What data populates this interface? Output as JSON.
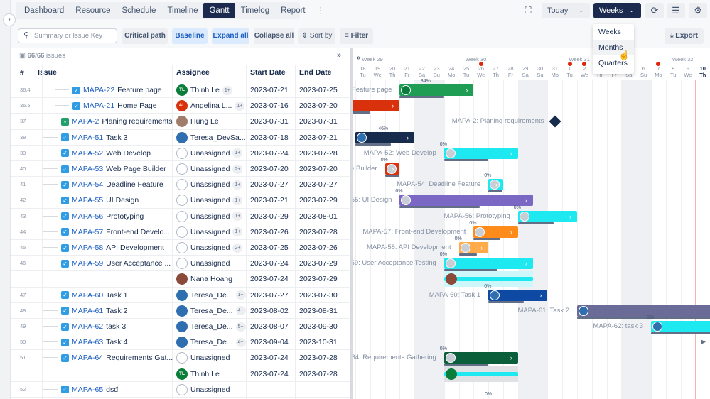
{
  "nav": {
    "tabs": [
      "Dashboard",
      "Resource",
      "Schedule",
      "Timeline",
      "Gantt",
      "Timelog",
      "Report"
    ],
    "active": "Gantt"
  },
  "toolbar": {
    "search_placeholder": "Summary or Issue Key",
    "critical_path": "Critical path",
    "baseline": "Baseline",
    "expand_all": "Expand all",
    "collapse_all": "Collapse all",
    "sort_by": "Sort by",
    "filter": "Filter",
    "export": "Export",
    "today": "Today",
    "scale": "Weeks"
  },
  "scale_menu": {
    "options": [
      "Weeks",
      "Months",
      "Quarters"
    ],
    "hovered": "Months"
  },
  "issues_count": "66/66",
  "issues_label": "issues",
  "columns": [
    "#",
    "Issue",
    "Assignee",
    "Start Date",
    "End Date"
  ],
  "timeline": {
    "weeks": [
      "Week 29",
      "Week 30",
      "Week 31",
      "Week 32"
    ],
    "days": [
      [
        "18",
        "Tu"
      ],
      [
        "19",
        "We"
      ],
      [
        "20",
        "Th"
      ],
      [
        "21",
        "Fr"
      ],
      [
        "22",
        "Sa"
      ],
      [
        "23",
        "Su"
      ],
      [
        "24",
        "Mo"
      ],
      [
        "25",
        "Tu"
      ],
      [
        "26",
        "We"
      ],
      [
        "27",
        "Th"
      ],
      [
        "28",
        "Fr"
      ],
      [
        "29",
        "Sa"
      ],
      [
        "30",
        "Su"
      ],
      [
        "31",
        "Mo"
      ],
      [
        "1",
        "Tu"
      ],
      [
        "2",
        "We"
      ],
      [
        "3",
        "Th"
      ],
      [
        "4",
        "Fr"
      ],
      [
        "5",
        "Sa"
      ],
      [
        "6",
        "Su"
      ],
      [
        "7",
        "Mo"
      ],
      [
        "8",
        "Tu"
      ],
      [
        "9",
        "We"
      ],
      [
        "10",
        "Th"
      ]
    ],
    "marked_days": [
      "26",
      "1",
      "2",
      "7"
    ],
    "today": "10"
  },
  "rows": [
    {
      "num": "36.4",
      "key": "MAPA-22",
      "summary": "Feature page",
      "bar_label": "Feature page",
      "level": 2,
      "type": "subtask",
      "assignee": "Thinh Le",
      "initials": "TL",
      "avatar_color": "#0a7d3b",
      "extra": "1+",
      "start": "2023-07-21",
      "end": "2023-07-25",
      "color": "#1f9d55",
      "progress": "34%"
    },
    {
      "num": "36.5",
      "key": "MAPA-21",
      "summary": "Home Page",
      "bar_label": "MAPA-21: Home Page",
      "level": 2,
      "type": "subtask",
      "assignee": "Angelina L...",
      "initials": "AL",
      "avatar_color": "#d9310b",
      "extra": "1+",
      "start": "2023-07-16",
      "end": "2023-07-20",
      "color": "#d9310b",
      "progress": "0%"
    },
    {
      "num": "37",
      "key": "MAPA-2",
      "summary": "Planing requirements",
      "bar_label": "MAPA-2: Planing requirements",
      "level": 1,
      "type": "story",
      "assignee": "Hung Le",
      "avatar_color": "#a07d6a",
      "start": "2023-07-31",
      "end": "2023-07-31",
      "milestone": true,
      "color": "#172b4d"
    },
    {
      "num": "38",
      "key": "MAPA-51",
      "summary": "Task 3",
      "bar_label": "MAPA-51: Task 3",
      "level": 1,
      "type": "task",
      "assignee": "Teresa_DevSa...",
      "avatar_color": "#2f6fb0",
      "start": "2023-07-18",
      "end": "2023-07-21",
      "color": "#172b4d",
      "progress": "46%"
    },
    {
      "num": "39",
      "key": "MAPA-52",
      "summary": "Web Develop",
      "bar_label": "MAPA-52: Web Develop",
      "level": 1,
      "type": "task",
      "assignee": "Unassigned",
      "extra": "1+",
      "start": "2023-07-24",
      "end": "2023-07-28",
      "color": "#1ee8f0",
      "progress": "0%"
    },
    {
      "num": "40",
      "key": "MAPA-53",
      "summary": "Web Page Builder",
      "bar_label": "MAPA-53: Web Page Builder",
      "level": 1,
      "type": "task",
      "assignee": "Unassigned",
      "extra": "2+",
      "start": "2023-07-20",
      "end": "2023-07-20",
      "color": "#d9310b",
      "progress": "0%"
    },
    {
      "num": "41",
      "key": "MAPA-54",
      "summary": "Deadline Feature",
      "bar_label": "MAPA-54: Deadline Feature",
      "level": 1,
      "type": "task",
      "assignee": "Unassigned",
      "extra": "1+",
      "start": "2023-07-27",
      "end": "2023-07-27",
      "color": "#1ee8f0",
      "progress": "0%"
    },
    {
      "num": "42",
      "key": "MAPA-55",
      "summary": "UI Design",
      "bar_label": "MAPA-55: UI Design",
      "level": 1,
      "type": "task",
      "assignee": "Unassigned",
      "extra": "1+",
      "start": "2023-07-21",
      "end": "2023-07-29",
      "color": "#7b68c4",
      "progress": "0%"
    },
    {
      "num": "43",
      "key": "MAPA-56",
      "summary": "Prototyping",
      "bar_label": "MAPA-56: Prototyping",
      "level": 1,
      "type": "task",
      "assignee": "Unassigned",
      "extra": "1+",
      "start": "2023-07-29",
      "end": "2023-08-01",
      "color": "#1ee8f0",
      "progress": "0%"
    },
    {
      "num": "44",
      "key": "MAPA-57",
      "summary": "Front-end Develo...",
      "bar_label": "MAPA-57: Front-end Development",
      "level": 1,
      "type": "task",
      "assignee": "Unassigned",
      "extra": "1+",
      "start": "2023-07-26",
      "end": "2023-07-28",
      "color": "#ff8b1a",
      "progress": "0%"
    },
    {
      "num": "45",
      "key": "MAPA-58",
      "summary": "API Development",
      "bar_label": "MAPA-58: API Development",
      "level": 1,
      "type": "task",
      "assignee": "Unassigned",
      "extra": "2+",
      "start": "2023-07-25",
      "end": "2023-07-26",
      "color": "#ffab4a",
      "progress": "0%"
    },
    {
      "num": "46",
      "key": "MAPA-59",
      "summary": "User Acceptance ...",
      "bar_label": "MAPA-59: User Acceptance Testing",
      "level": 1,
      "type": "task",
      "assignee": "Unassigned",
      "start": "2023-07-24",
      "end": "2023-07-29",
      "color": "#1ee8f0",
      "progress": "0%"
    },
    {
      "num": "",
      "key": "",
      "summary": "",
      "assignee": "Nana Hoang",
      "avatar_color": "#8a4a3a",
      "start": "2023-07-24",
      "end": "2023-07-29",
      "color": "#1ee8f0",
      "sub": true
    },
    {
      "num": "47",
      "key": "MAPA-60",
      "summary": "Task 1",
      "bar_label": "MAPA-60: Task 1",
      "level": 1,
      "type": "task",
      "assignee": "Teresa_De...",
      "avatar_color": "#2f6fb0",
      "extra": "1+",
      "start": "2023-07-27",
      "end": "2023-07-30",
      "color": "#0e4aa3",
      "progress": "0%"
    },
    {
      "num": "48",
      "key": "MAPA-61",
      "summary": "Task 2",
      "bar_label": "MAPA-61: Task 2",
      "level": 1,
      "type": "task",
      "assignee": "Teresa_De...",
      "avatar_color": "#2f6fb0",
      "extra": "4+",
      "start": "2023-08-02",
      "end": "2023-08-31",
      "color": "#6b6b98"
    },
    {
      "num": "49",
      "key": "MAPA-62",
      "summary": "task 3",
      "bar_label": "MAPA-62: task 3",
      "level": 1,
      "type": "task",
      "assignee": "Teresa_De...",
      "avatar_color": "#2f6fb0",
      "extra": "5+",
      "start": "2023-08-07",
      "end": "2023-09-30",
      "color": "#1ee8f0",
      "progress": "0%"
    },
    {
      "num": "50",
      "key": "MAPA-63",
      "summary": "Task 4",
      "level": 1,
      "type": "task",
      "assignee": "Teresa_De...",
      "avatar_color": "#2f6fb0",
      "extra": "4+",
      "start": "2023-09-04",
      "end": "2023-10-31",
      "color": "#1ee8f0"
    },
    {
      "num": "51",
      "key": "MAPA-64",
      "summary": "Requirements Gat...",
      "bar_label": "MAPA-64: Requirements Gathering",
      "level": 1,
      "type": "task",
      "assignee": "Unassigned",
      "start": "2023-07-24",
      "end": "2023-07-28",
      "color": "#0b5e3a",
      "progress": "0%"
    },
    {
      "num": "",
      "key": "",
      "summary": "",
      "assignee": "Thinh Le",
      "initials": "TL",
      "avatar_color": "#0a7d3b",
      "start": "2023-07-24",
      "end": "2023-07-28",
      "color": "#1ee8f0",
      "sub": true
    },
    {
      "num": "52",
      "key": "MAPA-65",
      "summary": "dsđ",
      "level": 1,
      "type": "task",
      "assignee": "Unassigned",
      "start": "",
      "end": "",
      "progress": "0%"
    }
  ]
}
